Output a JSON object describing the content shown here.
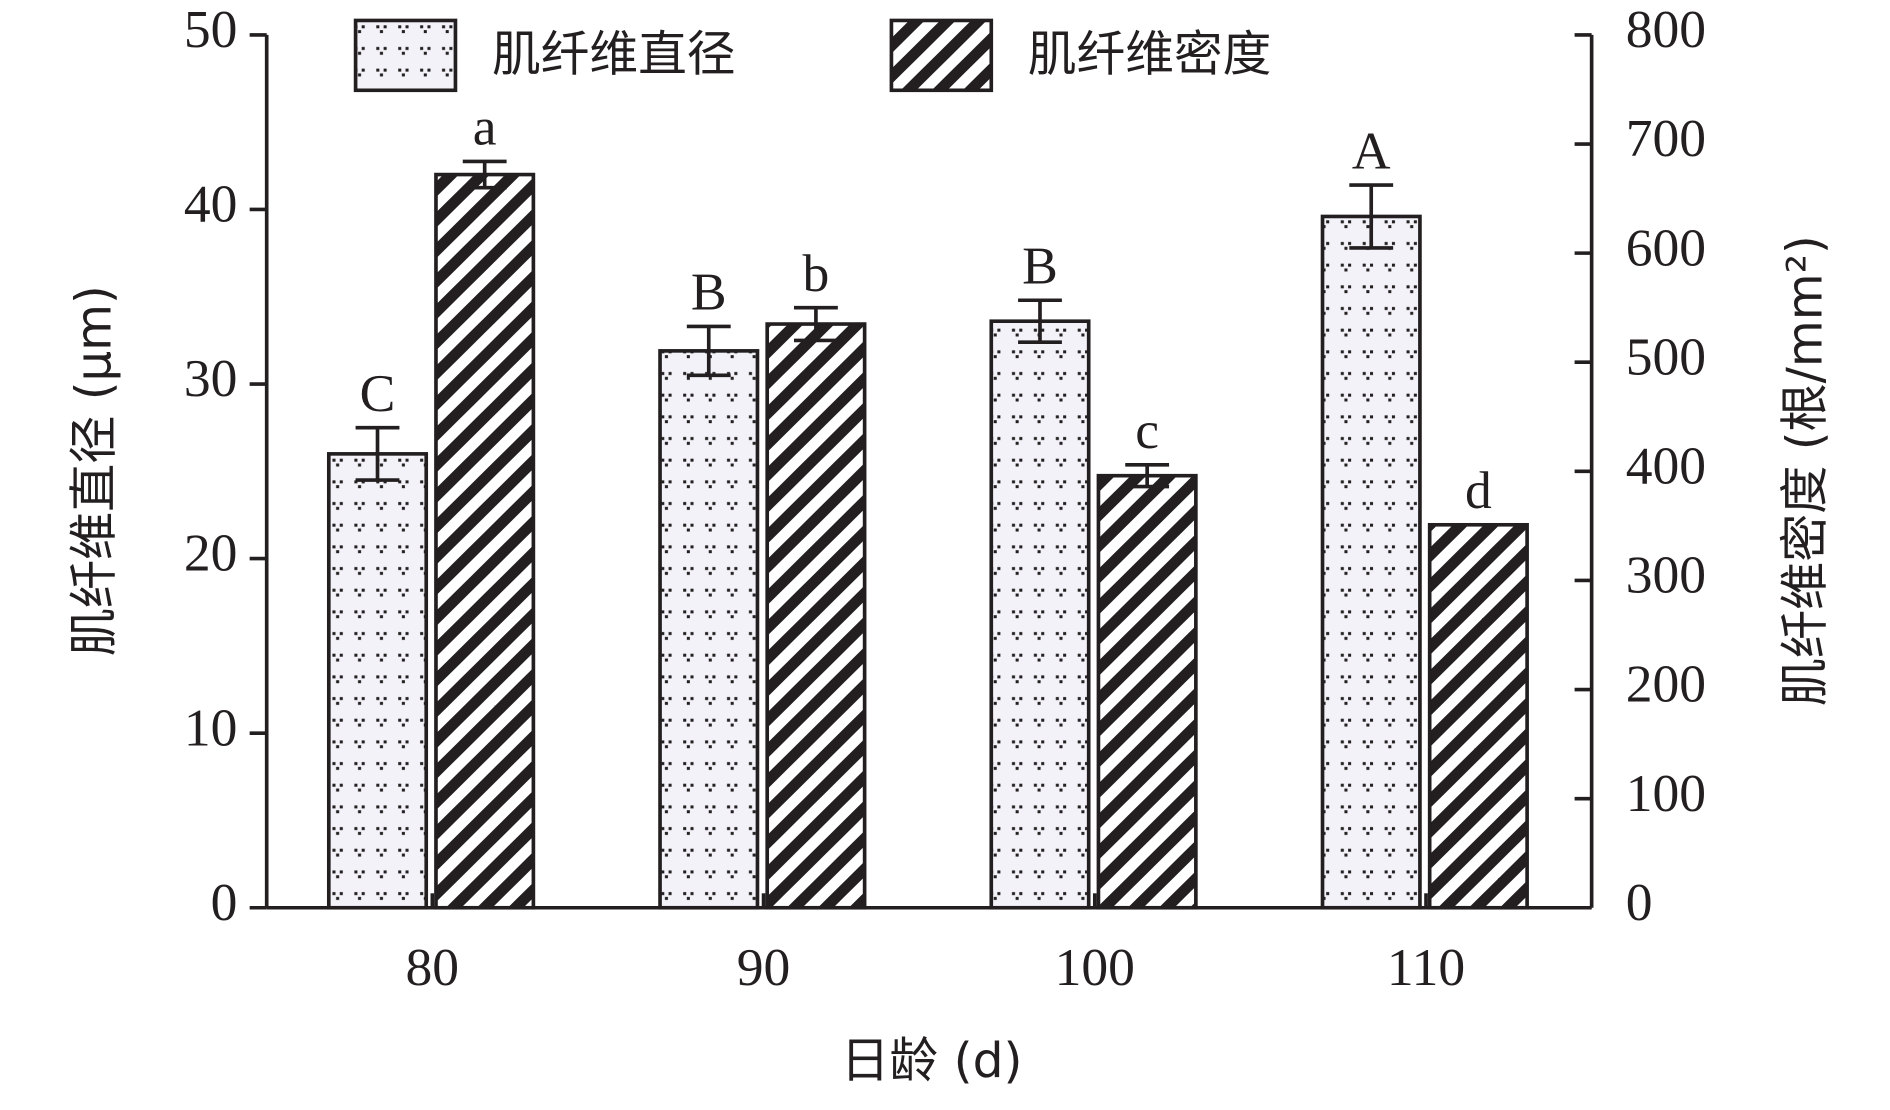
{
  "chart_data": {
    "type": "bar",
    "x_label": "日龄 (d)",
    "y_label": "肌纤维直径 (μm)",
    "y2_label": "肌纤维密度 (根/mm²)",
    "categories": [
      "80",
      "90",
      "100",
      "110"
    ],
    "ylim": [
      0,
      50
    ],
    "yticks": [
      0,
      10,
      20,
      30,
      40,
      50
    ],
    "y2lim": [
      0,
      800
    ],
    "y2ticks": [
      0,
      100,
      200,
      300,
      400,
      500,
      600,
      700,
      800
    ],
    "series": [
      {
        "name": "肌纤维直径",
        "pattern": "dots",
        "color": "#f3f2f8",
        "values": [
          26.0,
          31.9,
          33.6,
          39.6
        ],
        "errors": [
          1.5,
          1.4,
          1.2,
          1.8
        ],
        "labels": [
          "C",
          "B",
          "B",
          "A"
        ]
      },
      {
        "name": "肌纤维密度",
        "pattern": "hatch",
        "color": "#231f20",
        "axis": "y2",
        "values": [
          672,
          535,
          396,
          351
        ],
        "errors": [
          12,
          15,
          10,
          null
        ],
        "labels": [
          "a",
          "b",
          "c",
          "d"
        ]
      }
    ],
    "legend": "top"
  }
}
